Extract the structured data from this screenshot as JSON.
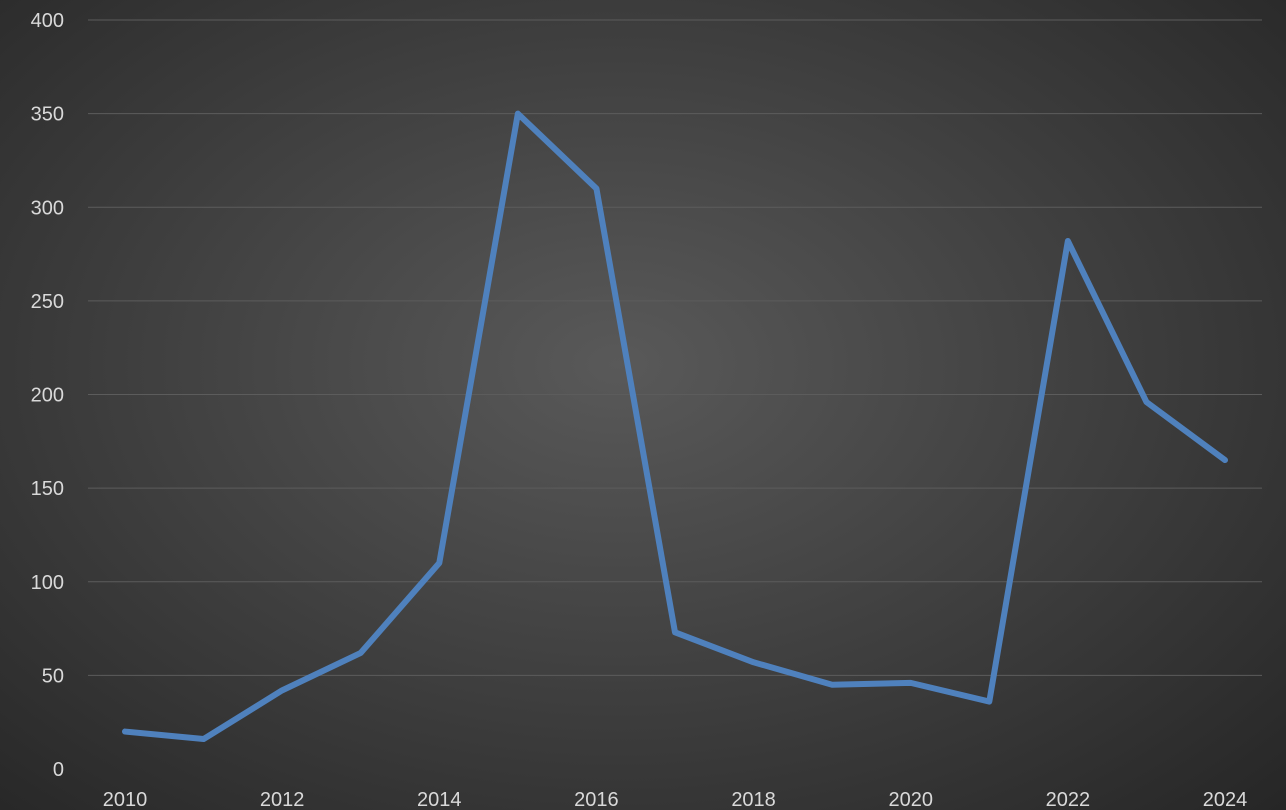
{
  "chart_data": {
    "type": "line",
    "title": "",
    "xlabel": "",
    "ylabel": "",
    "x": [
      2010,
      2011,
      2012,
      2013,
      2014,
      2015,
      2016,
      2017,
      2018,
      2019,
      2020,
      2021,
      2022,
      2023,
      2024
    ],
    "series": [
      {
        "values": [
          20,
          16,
          42,
          62,
          110,
          350,
          310,
          73,
          57,
          45,
          46,
          36,
          282,
          196,
          165
        ]
      }
    ],
    "ylim": [
      0,
      400
    ],
    "yticks": [
      "0",
      "50",
      "100",
      "150",
      "200",
      "250",
      "300",
      "350",
      "400"
    ],
    "xticks": [
      "2010",
      "2012",
      "2014",
      "2016",
      "2018",
      "2020",
      "2022",
      "2024"
    ],
    "grid": true,
    "legend": "none",
    "colors": {
      "line": "#4f81bd",
      "grid": "#5c5c5c",
      "tick_text": "#d9d9d9"
    }
  }
}
